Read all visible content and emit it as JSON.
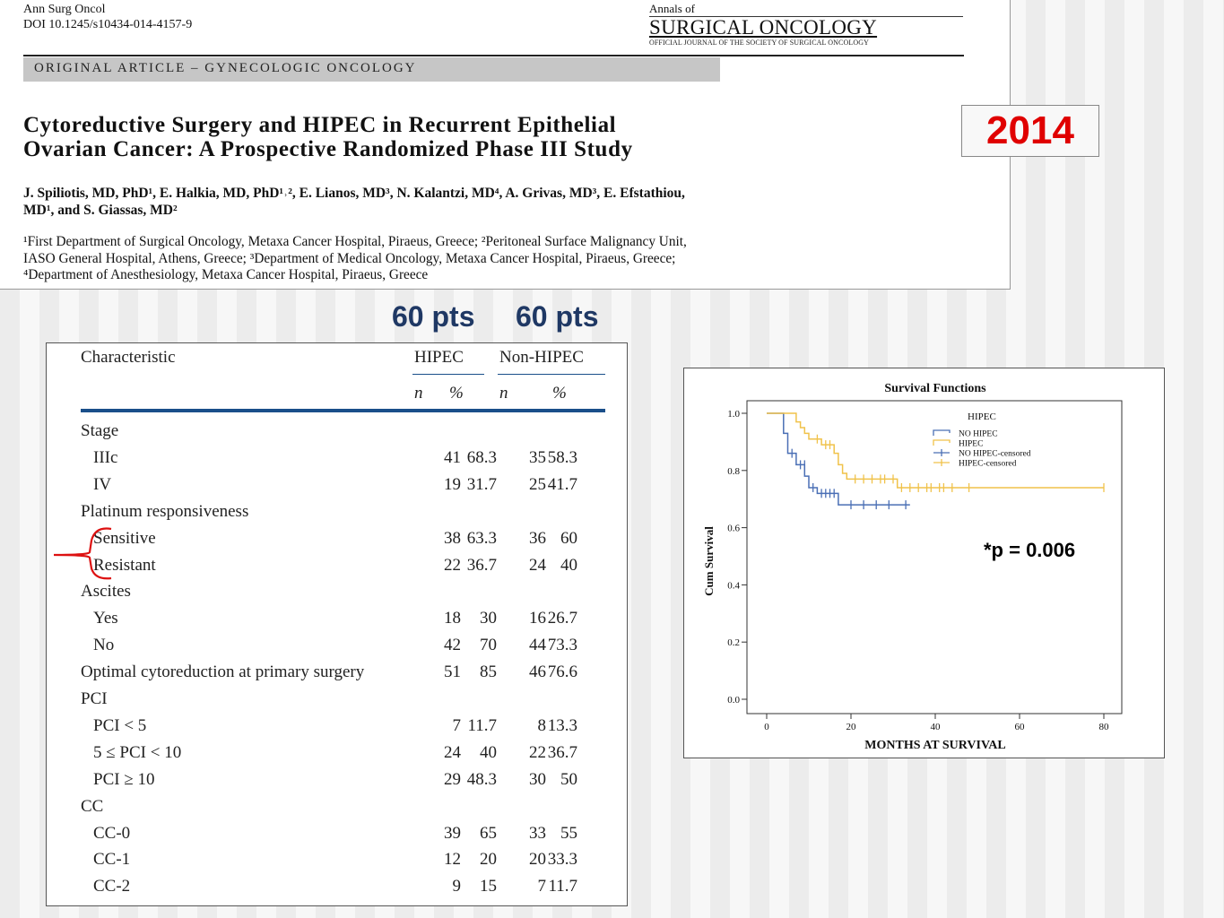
{
  "journal": {
    "citation": "Ann Surg Oncol",
    "doi": "DOI 10.1245/s10434-014-4157-9",
    "annals_of": "Annals of",
    "name": "SURGICAL ONCOLOGY",
    "subtitle": "OFFICIAL JOURNAL OF THE SOCIETY OF SURGICAL ONCOLOGY"
  },
  "article": {
    "section": "ORIGINAL ARTICLE – GYNECOLOGIC ONCOLOGY",
    "title_line1": "Cytoreductive Surgery and HIPEC in Recurrent Epithelial",
    "title_line2": "Ovarian Cancer: A Prospective Randomized Phase III Study",
    "authors_line1": "J. Spiliotis, MD, PhD¹, E. Halkia, MD, PhD¹˒², E. Lianos, MD³, N. Kalantzi, MD⁴, A. Grivas, MD³, E. Efstathiou,",
    "authors_line2": "MD¹, and S. Giassas, MD²",
    "affil_line1": "¹First Department of Surgical Oncology, Metaxa Cancer Hospital, Piraeus, Greece; ²Peritoneal Surface Malignancy Unit,",
    "affil_line2": "IASO General Hospital, Athens, Greece; ³Department of Medical Oncology, Metaxa Cancer Hospital, Piraeus, Greece;",
    "affil_line3": "⁴Department of Anesthesiology, Metaxa Cancer Hospital, Piraeus, Greece"
  },
  "year": "2014",
  "pts_hipec": "60 pts",
  "pts_non_hipec": "60 pts",
  "p_value": "*p = 0.006",
  "table": {
    "header_characteristic": "Characteristic",
    "header_hipec": "HIPEC",
    "header_non_hipec": "Non-HIPEC",
    "sub_n": "n",
    "sub_pct": "%",
    "rows": [
      {
        "label": "Stage",
        "indent": false,
        "v": [
          "",
          "",
          "",
          ""
        ]
      },
      {
        "label": "IIIc",
        "indent": true,
        "v": [
          "41",
          "68.3",
          "35",
          "58.3"
        ]
      },
      {
        "label": "IV",
        "indent": true,
        "v": [
          "19",
          "31.7",
          "25",
          "41.7"
        ]
      },
      {
        "label": "Platinum responsiveness",
        "indent": false,
        "v": [
          "",
          "",
          "",
          ""
        ]
      },
      {
        "label": "Sensitive",
        "indent": true,
        "v": [
          "38",
          "63.3",
          "36",
          "60"
        ]
      },
      {
        "label": "Resistant",
        "indent": true,
        "v": [
          "22",
          "36.7",
          "24",
          "40"
        ]
      },
      {
        "label": "Ascites",
        "indent": false,
        "v": [
          "",
          "",
          "",
          ""
        ]
      },
      {
        "label": "Yes",
        "indent": true,
        "v": [
          "18",
          "30",
          "16",
          "26.7"
        ]
      },
      {
        "label": "No",
        "indent": true,
        "v": [
          "42",
          "70",
          "44",
          "73.3"
        ]
      },
      {
        "label": "Optimal cytoreduction at primary surgery",
        "indent": false,
        "v": [
          "51",
          "85",
          "46",
          "76.6"
        ]
      },
      {
        "label": "PCI",
        "indent": false,
        "v": [
          "",
          "",
          "",
          ""
        ]
      },
      {
        "label": "PCI < 5",
        "indent": true,
        "v": [
          "7",
          "11.7",
          "8",
          "13.3"
        ]
      },
      {
        "label": "5 ≤ PCI < 10",
        "indent": true,
        "v": [
          "24",
          "40",
          "22",
          "36.7"
        ]
      },
      {
        "label": "PCI ≥ 10",
        "indent": true,
        "v": [
          "29",
          "48.3",
          "30",
          "50"
        ]
      },
      {
        "label": "CC",
        "indent": false,
        "v": [
          "",
          "",
          "",
          ""
        ]
      },
      {
        "label": "CC-0",
        "indent": true,
        "v": [
          "39",
          "65",
          "33",
          "55"
        ]
      },
      {
        "label": "CC-1",
        "indent": true,
        "v": [
          "12",
          "20",
          "20",
          "33.3"
        ]
      },
      {
        "label": "CC-2",
        "indent": true,
        "v": [
          "9",
          "15",
          "7",
          "11.7"
        ]
      }
    ]
  },
  "chart_data": {
    "type": "line",
    "title": "Survival Functions",
    "xlabel": "MONTHS AT SURVIVAL",
    "ylabel": "Cum Survival",
    "xlim": [
      0,
      80
    ],
    "ylim": [
      0,
      1.0
    ],
    "xticks": [
      0,
      20,
      40,
      60,
      80
    ],
    "yticks": [
      0.0,
      0.2,
      0.4,
      0.6,
      0.8,
      1.0
    ],
    "legend_title": "HIPEC",
    "legend": [
      "NO HIPEC",
      "HIPEC",
      "NO HIPEC-censored",
      "HIPEC-censored"
    ],
    "colors": {
      "no_hipec": "#4a6fb5",
      "hipec": "#f0c24a"
    },
    "series": [
      {
        "name": "NO HIPEC",
        "color": "#4a6fb5",
        "steps": [
          [
            0,
            1.0
          ],
          [
            4,
            0.93
          ],
          [
            5,
            0.86
          ],
          [
            7,
            0.82
          ],
          [
            9,
            0.78
          ],
          [
            10,
            0.74
          ],
          [
            12,
            0.72
          ],
          [
            17,
            0.68
          ],
          [
            34,
            0.68
          ]
        ],
        "censored": [
          [
            6,
            0.86
          ],
          [
            8,
            0.82
          ],
          [
            9,
            0.82
          ],
          [
            11,
            0.74
          ],
          [
            13,
            0.72
          ],
          [
            14,
            0.72
          ],
          [
            15,
            0.72
          ],
          [
            16,
            0.72
          ],
          [
            20,
            0.68
          ],
          [
            23,
            0.68
          ],
          [
            26,
            0.68
          ],
          [
            29,
            0.68
          ],
          [
            33,
            0.68
          ]
        ]
      },
      {
        "name": "HIPEC",
        "color": "#f0c24a",
        "steps": [
          [
            0,
            1.0
          ],
          [
            7,
            0.97
          ],
          [
            8,
            0.95
          ],
          [
            9,
            0.93
          ],
          [
            10,
            0.91
          ],
          [
            13,
            0.89
          ],
          [
            16,
            0.86
          ],
          [
            17,
            0.82
          ],
          [
            18,
            0.79
          ],
          [
            19,
            0.77
          ],
          [
            31,
            0.74
          ],
          [
            80,
            0.74
          ]
        ],
        "censored": [
          [
            12,
            0.91
          ],
          [
            14,
            0.89
          ],
          [
            15,
            0.89
          ],
          [
            21,
            0.77
          ],
          [
            23,
            0.77
          ],
          [
            25,
            0.77
          ],
          [
            27,
            0.77
          ],
          [
            28,
            0.77
          ],
          [
            30,
            0.77
          ],
          [
            32,
            0.74
          ],
          [
            34,
            0.74
          ],
          [
            36,
            0.74
          ],
          [
            38,
            0.74
          ],
          [
            39,
            0.74
          ],
          [
            41,
            0.74
          ],
          [
            42,
            0.74
          ],
          [
            44,
            0.74
          ],
          [
            48,
            0.74
          ],
          [
            80,
            0.74
          ]
        ]
      }
    ]
  }
}
